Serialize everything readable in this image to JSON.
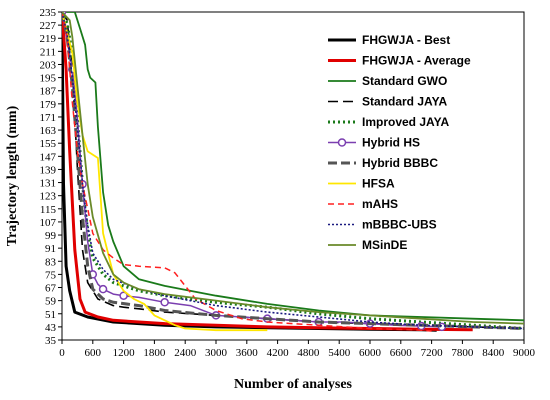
{
  "chart_data": {
    "type": "line",
    "title": "",
    "xlabel": "Number of analyses",
    "ylabel": "Trajectory length (mm)",
    "xlim": [
      0,
      9000
    ],
    "ylim": [
      35,
      235
    ],
    "x_ticks": [
      0,
      600,
      1200,
      1800,
      2400,
      3000,
      3600,
      4200,
      4800,
      5400,
      6000,
      6600,
      7200,
      7800,
      8400,
      9000
    ],
    "y_ticks": [
      35,
      43,
      51,
      59,
      67,
      75,
      83,
      91,
      99,
      107,
      115,
      123,
      131,
      139,
      147,
      155,
      163,
      171,
      179,
      187,
      195,
      203,
      211,
      219,
      227,
      235
    ],
    "grid": false,
    "legend_position": "right",
    "series": [
      {
        "name": "FHGWJA - Best",
        "color": "#000000",
        "dash": "solid",
        "width": 3,
        "marker": "none",
        "points": [
          [
            0,
            235
          ],
          [
            30,
            130
          ],
          [
            80,
            80
          ],
          [
            150,
            65
          ],
          [
            250,
            52
          ],
          [
            500,
            49
          ],
          [
            1000,
            46
          ],
          [
            1500,
            45
          ],
          [
            2000,
            44
          ],
          [
            3000,
            43
          ],
          [
            4000,
            42.5
          ],
          [
            5000,
            42
          ],
          [
            6000,
            41.5
          ],
          [
            7000,
            41.3
          ],
          [
            7300,
            41
          ]
        ]
      },
      {
        "name": "FHGWJA - Average",
        "color": "#e00000",
        "dash": "solid",
        "width": 3,
        "marker": "none",
        "points": [
          [
            0,
            235
          ],
          [
            80,
            200
          ],
          [
            150,
            150
          ],
          [
            250,
            90
          ],
          [
            350,
            60
          ],
          [
            450,
            52
          ],
          [
            700,
            49
          ],
          [
            1000,
            47
          ],
          [
            1500,
            46
          ],
          [
            2000,
            45
          ],
          [
            3000,
            44
          ],
          [
            4000,
            43
          ],
          [
            5000,
            42.5
          ],
          [
            6000,
            42
          ],
          [
            7000,
            41.5
          ],
          [
            8000,
            41.2
          ]
        ]
      },
      {
        "name": "Standard GWO",
        "color": "#1a7a1a",
        "dash": "solid",
        "width": 1.8,
        "marker": "none",
        "points": [
          [
            0,
            235
          ],
          [
            250,
            235
          ],
          [
            350,
            225
          ],
          [
            450,
            215
          ],
          [
            500,
            200
          ],
          [
            550,
            195
          ],
          [
            650,
            192
          ],
          [
            700,
            165
          ],
          [
            800,
            125
          ],
          [
            900,
            105
          ],
          [
            1000,
            95
          ],
          [
            1200,
            80
          ],
          [
            1500,
            72
          ],
          [
            2000,
            68
          ],
          [
            3000,
            62
          ],
          [
            4000,
            57
          ],
          [
            5000,
            53
          ],
          [
            6000,
            50
          ],
          [
            7000,
            49
          ],
          [
            8000,
            48
          ],
          [
            9000,
            47
          ]
        ]
      },
      {
        "name": "Standard JAYA",
        "color": "#000000",
        "dash": "10,5",
        "width": 1.6,
        "marker": "none",
        "points": [
          [
            0,
            235
          ],
          [
            100,
            230
          ],
          [
            200,
            200
          ],
          [
            300,
            140
          ],
          [
            400,
            90
          ],
          [
            500,
            70
          ],
          [
            700,
            60
          ],
          [
            1000,
            56
          ],
          [
            1200,
            55
          ],
          [
            1500,
            54
          ],
          [
            2000,
            52
          ],
          [
            3000,
            50
          ],
          [
            4000,
            48
          ],
          [
            5000,
            46
          ],
          [
            6000,
            45
          ],
          [
            7000,
            44
          ],
          [
            8000,
            43
          ],
          [
            9000,
            42
          ]
        ]
      },
      {
        "name": "Improved JAYA",
        "color": "#1a7a1a",
        "dash": "2,3",
        "width": 3,
        "marker": "none",
        "points": [
          [
            0,
            235
          ],
          [
            100,
            228
          ],
          [
            200,
            210
          ],
          [
            300,
            170
          ],
          [
            400,
            130
          ],
          [
            500,
            100
          ],
          [
            600,
            85
          ],
          [
            800,
            75
          ],
          [
            1000,
            70
          ],
          [
            1500,
            65
          ],
          [
            2000,
            62
          ],
          [
            3000,
            58
          ],
          [
            4000,
            55
          ],
          [
            5000,
            51
          ],
          [
            6000,
            48
          ],
          [
            7000,
            46
          ],
          [
            8000,
            44
          ],
          [
            9000,
            42
          ]
        ]
      },
      {
        "name": "Hybrid HS",
        "color": "#7b3fb0",
        "dash": "solid",
        "width": 1.5,
        "marker": "circle",
        "points": [
          [
            0,
            235
          ],
          [
            200,
            200
          ],
          [
            300,
            170
          ],
          [
            400,
            130
          ],
          [
            500,
            95
          ],
          [
            600,
            75
          ],
          [
            700,
            69
          ],
          [
            800,
            66
          ],
          [
            1000,
            63
          ],
          [
            1200,
            62
          ],
          [
            1500,
            61
          ],
          [
            2000,
            58
          ],
          [
            2500,
            56
          ],
          [
            3000,
            50
          ],
          [
            3500,
            49
          ],
          [
            4000,
            48
          ],
          [
            4500,
            47
          ],
          [
            5000,
            46
          ],
          [
            5500,
            46
          ],
          [
            6000,
            45
          ],
          [
            6500,
            44
          ],
          [
            7000,
            43.5
          ],
          [
            7400,
            43
          ]
        ]
      },
      {
        "name": "Hybrid BBBC",
        "color": "#555555",
        "dash": "9,4",
        "width": 3,
        "marker": "none",
        "points": [
          [
            0,
            235
          ],
          [
            100,
            220
          ],
          [
            200,
            190
          ],
          [
            300,
            150
          ],
          [
            400,
            110
          ],
          [
            500,
            80
          ],
          [
            600,
            66
          ],
          [
            800,
            60
          ],
          [
            1000,
            58
          ],
          [
            1500,
            56
          ],
          [
            2000,
            53
          ],
          [
            3000,
            50
          ],
          [
            4000,
            48
          ],
          [
            5000,
            46
          ],
          [
            6000,
            45
          ],
          [
            7000,
            44
          ],
          [
            8000,
            43
          ],
          [
            9000,
            42
          ]
        ]
      },
      {
        "name": "HFSA",
        "color": "#ffe600",
        "dash": "solid",
        "width": 1.8,
        "marker": "none",
        "points": [
          [
            0,
            235
          ],
          [
            200,
            210
          ],
          [
            300,
            180
          ],
          [
            400,
            160
          ],
          [
            500,
            150
          ],
          [
            700,
            146
          ],
          [
            800,
            100
          ],
          [
            1000,
            75
          ],
          [
            1200,
            65
          ],
          [
            1400,
            60
          ],
          [
            1600,
            57
          ],
          [
            1800,
            50
          ],
          [
            2000,
            47
          ],
          [
            2200,
            44
          ],
          [
            2400,
            42
          ],
          [
            3000,
            41
          ],
          [
            4000,
            41
          ]
        ]
      },
      {
        "name": "mAHS",
        "color": "#ff2020",
        "dash": "6,4",
        "width": 1.5,
        "marker": "none",
        "points": [
          [
            0,
            235
          ],
          [
            100,
            220
          ],
          [
            200,
            180
          ],
          [
            300,
            150
          ],
          [
            400,
            130
          ],
          [
            500,
            115
          ],
          [
            600,
            100
          ],
          [
            800,
            90
          ],
          [
            1000,
            85
          ],
          [
            1200,
            81
          ],
          [
            1500,
            80
          ],
          [
            2000,
            79
          ],
          [
            2200,
            76
          ],
          [
            2400,
            68
          ],
          [
            2600,
            60
          ],
          [
            3000,
            53
          ],
          [
            3500,
            48
          ],
          [
            4000,
            46
          ],
          [
            5000,
            44
          ],
          [
            6000,
            42
          ],
          [
            7000,
            41
          ],
          [
            7200,
            40.5
          ]
        ]
      },
      {
        "name": "mBBBC-UBS",
        "color": "#1a1a80",
        "dash": "2,2",
        "width": 1.6,
        "marker": "none",
        "points": [
          [
            0,
            235
          ],
          [
            100,
            222
          ],
          [
            200,
            195
          ],
          [
            300,
            165
          ],
          [
            400,
            130
          ],
          [
            500,
            105
          ],
          [
            600,
            88
          ],
          [
            800,
            78
          ],
          [
            1000,
            72
          ],
          [
            1500,
            66
          ],
          [
            2000,
            62
          ],
          [
            3000,
            56
          ],
          [
            4000,
            52
          ],
          [
            5000,
            49
          ],
          [
            6000,
            46
          ],
          [
            7000,
            44
          ],
          [
            8000,
            43
          ],
          [
            9000,
            42
          ]
        ]
      },
      {
        "name": "MSinDE",
        "color": "#6a8a2a",
        "dash": "solid",
        "width": 1.8,
        "marker": "none",
        "points": [
          [
            0,
            235
          ],
          [
            150,
            230
          ],
          [
            200,
            220
          ],
          [
            300,
            190
          ],
          [
            400,
            160
          ],
          [
            500,
            130
          ],
          [
            600,
            110
          ],
          [
            800,
            88
          ],
          [
            1000,
            75
          ],
          [
            1200,
            70
          ],
          [
            1500,
            66
          ],
          [
            2000,
            63
          ],
          [
            3000,
            59
          ],
          [
            4000,
            55
          ],
          [
            5000,
            52
          ],
          [
            6000,
            50
          ],
          [
            7000,
            48
          ],
          [
            8000,
            46
          ],
          [
            9000,
            45
          ]
        ]
      }
    ]
  }
}
